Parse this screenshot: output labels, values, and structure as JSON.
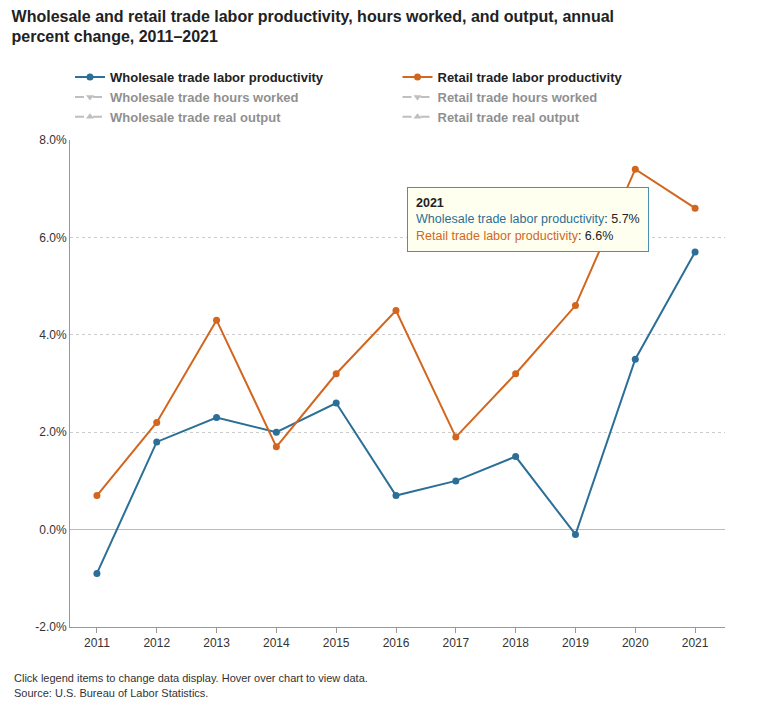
{
  "chart_data": {
    "type": "line",
    "title": "Wholesale and retail trade labor productivity, hours worked, and output, annual percent change, 2011–2021",
    "categories": [
      "2011",
      "2012",
      "2013",
      "2014",
      "2015",
      "2016",
      "2017",
      "2018",
      "2019",
      "2020",
      "2021"
    ],
    "series": [
      {
        "name": "Wholesale trade labor productivity",
        "color": "#2b6f97",
        "marker": "circle",
        "line_style": "solid",
        "values": [
          -0.9,
          1.8,
          2.3,
          2.0,
          2.6,
          0.7,
          1.0,
          1.5,
          -0.1,
          3.5,
          5.7
        ]
      },
      {
        "name": "Retail trade labor productivity",
        "color": "#d2661e",
        "marker": "circle",
        "line_style": "solid",
        "values": [
          0.7,
          2.2,
          4.3,
          1.7,
          3.2,
          4.5,
          1.9,
          3.2,
          4.6,
          7.4,
          6.6
        ]
      },
      {
        "name": "Wholesale trade hours worked",
        "color": "#808080",
        "marker": "triangle-down",
        "line_style": "dash",
        "values": [
          null,
          null,
          null,
          null,
          null,
          null,
          null,
          null,
          null,
          null,
          null
        ]
      },
      {
        "name": "Retail trade hours worked",
        "color": "#808080",
        "marker": "triangle-down",
        "line_style": "dash",
        "values": [
          null,
          null,
          null,
          null,
          null,
          null,
          null,
          null,
          null,
          null,
          null
        ]
      },
      {
        "name": "Wholesale trade real output",
        "color": "#808080",
        "marker": "triangle-up",
        "line_style": "dash",
        "values": [
          null,
          null,
          null,
          null,
          null,
          null,
          null,
          null,
          null,
          null,
          null
        ]
      },
      {
        "name": "Retail trade real output",
        "color": "#808080",
        "marker": "triangle-up",
        "line_style": "dash",
        "values": [
          null,
          null,
          null,
          null,
          null,
          null,
          null,
          null,
          null,
          null,
          null
        ]
      }
    ],
    "ylim": [
      -2,
      8
    ],
    "yticks": [
      {
        "value": -2,
        "label": "-2.0%"
      },
      {
        "value": 0,
        "label": "0.0%"
      },
      {
        "value": 2,
        "label": "2.0%"
      },
      {
        "value": 4,
        "label": "4.0%"
      },
      {
        "value": 6,
        "label": "6.0%"
      },
      {
        "value": 8,
        "label": "8.0%"
      }
    ],
    "grid": true,
    "legend": "top",
    "annotations": [
      {
        "title": "2021",
        "lines": [
          {
            "text": "Wholesale trade labor productivity: 5.7%",
            "color": "#2b6f97"
          },
          {
            "text": "Retail trade labor productivity: 6.6%",
            "color": "#d2661e"
          }
        ]
      }
    ],
    "notes": [
      "Click legend items to change data display. Hover over chart to view data.",
      "Source: U.S. Bureau of Labor Statistics."
    ]
  }
}
